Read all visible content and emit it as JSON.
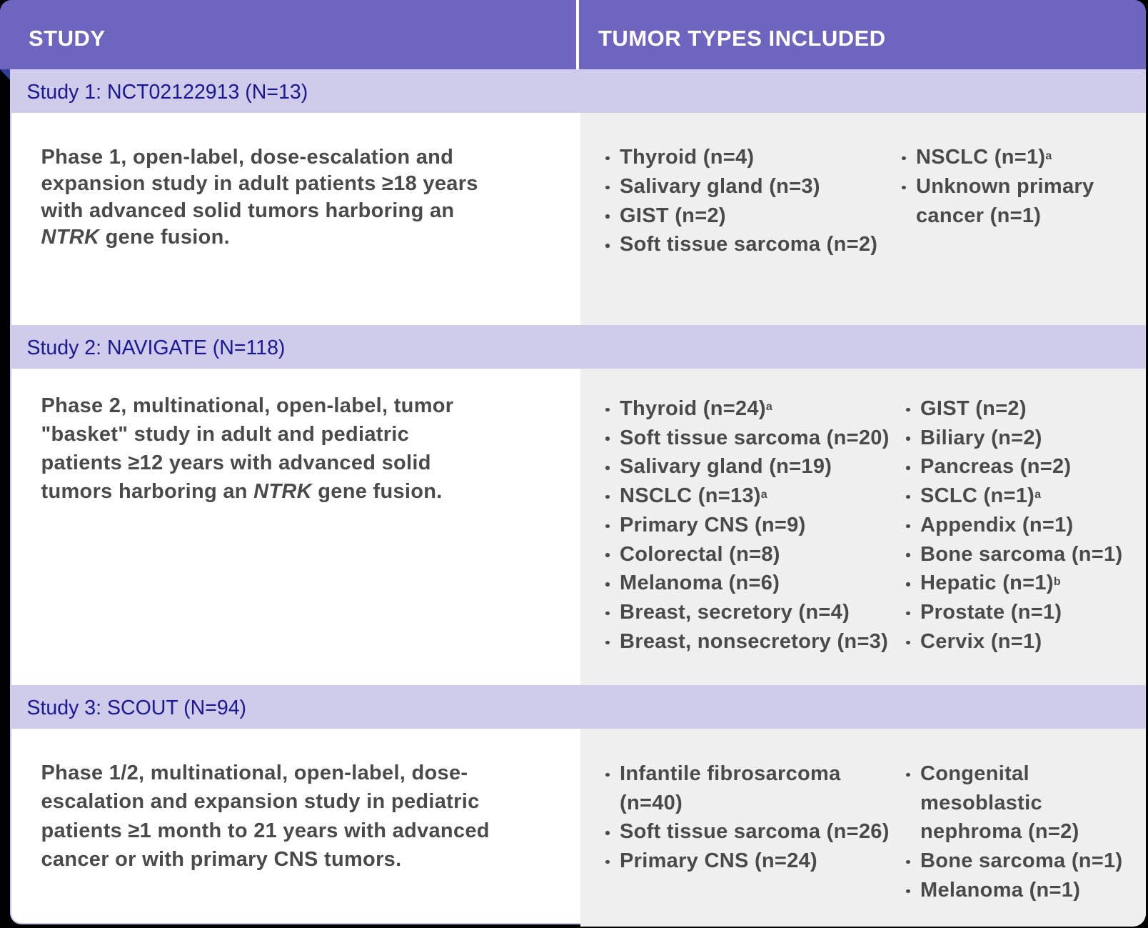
{
  "colors": {
    "c-header": "#6E65C1",
    "c-fold": "#2F3D9B",
    "c-banner": "#CECBEB",
    "c-banner-text": "#1C1892",
    "c-gray": "#EFEFEF",
    "c-text": "#4A4A4A",
    "c-border": "#C9C6EA"
  },
  "header": {
    "study_label": "STUDY",
    "tumor_types_label": "TUMOR TYPES INCLUDED"
  },
  "studies": [
    {
      "title": "Study 1: NCT02122913 (N=13)",
      "description_segments": [
        {
          "t": "Phase 1, open-label, dose-escalation and\nexpansion study in adult patients ≥18 years\nwith advanced solid tumors harboring an\n"
        },
        {
          "t": "NTRK",
          "i": true
        },
        {
          "t": " gene fusion."
        }
      ],
      "tumor_columns": [
        [
          {
            "label": "Thyroid (n=4)"
          },
          {
            "label": "Salivary gland (n=3)"
          },
          {
            "label": "GIST (n=2)"
          },
          {
            "label": "Soft tissue sarcoma (n=2)"
          }
        ],
        [
          {
            "label": "NSCLC (n=1)",
            "sup": "a"
          },
          {
            "label": "Unknown primary\ncancer (n=1)"
          }
        ]
      ]
    },
    {
      "title": "Study 2: NAVIGATE (N=118)",
      "description_segments": [
        {
          "t": "Phase 2, multinational, open-label, tumor\n\"basket\" study in adult and pediatric\npatients ≥12 years with advanced solid\ntumors harboring an "
        },
        {
          "t": "NTRK",
          "i": true
        },
        {
          "t": " gene fusion."
        }
      ],
      "tumor_columns": [
        [
          {
            "label": "Thyroid (n=24)",
            "sup": "a"
          },
          {
            "label": "Soft tissue sarcoma (n=20)"
          },
          {
            "label": "Salivary gland (n=19)"
          },
          {
            "label": "NSCLC (n=13)",
            "sup": "a"
          },
          {
            "label": "Primary CNS (n=9)"
          },
          {
            "label": "Colorectal (n=8)"
          },
          {
            "label": "Melanoma (n=6)"
          },
          {
            "label": "Breast, secretory (n=4)"
          },
          {
            "label": "Breast, nonsecretory (n=3)"
          }
        ],
        [
          {
            "label": "GIST (n=2)"
          },
          {
            "label": "Biliary (n=2)"
          },
          {
            "label": "Pancreas (n=2)"
          },
          {
            "label": "SCLC (n=1)",
            "sup": "a"
          },
          {
            "label": "Appendix (n=1)"
          },
          {
            "label": "Bone sarcoma (n=1)"
          },
          {
            "label": "Hepatic (n=1)",
            "sup": "b"
          },
          {
            "label": "Prostate (n=1)"
          },
          {
            "label": "Cervix (n=1)"
          }
        ]
      ]
    },
    {
      "title": "Study 3: SCOUT (N=94)",
      "description_segments": [
        {
          "t": "Phase 1/2, multinational, open-label, dose-\nescalation and expansion study in pediatric\npatients ≥1 month to 21 years with advanced\ncancer or with primary CNS tumors."
        }
      ],
      "tumor_columns": [
        [
          {
            "label": "Infantile fibrosarcoma\n(n=40)"
          },
          {
            "label": "Soft tissue sarcoma (n=26)"
          },
          {
            "label": "Primary CNS (n=24)"
          }
        ],
        [
          {
            "label": "Congenital\nmesoblastic\nnephroma (n=2)"
          },
          {
            "label": "Bone sarcoma (n=1)"
          },
          {
            "label": "Melanoma (n=1)"
          }
        ]
      ]
    }
  ]
}
